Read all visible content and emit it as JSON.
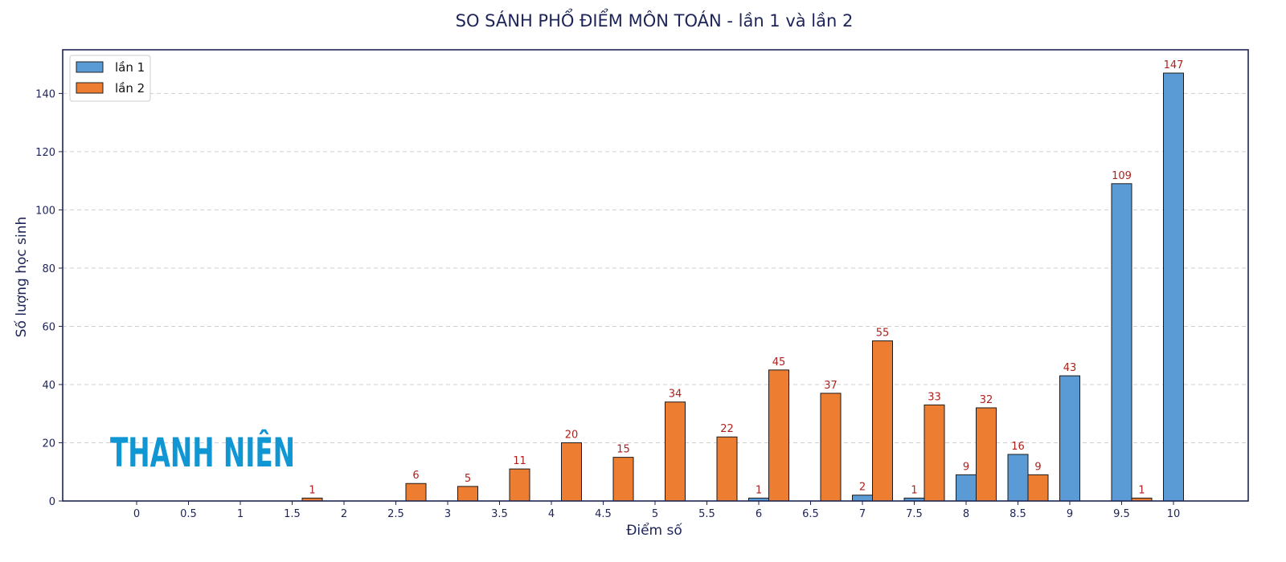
{
  "chart_data": {
    "type": "bar",
    "title": "SO SÁNH PHỔ ĐIỂM MÔN TOÁN - lần 1 và lần 2",
    "xlabel": "Điểm số",
    "ylabel": "Số lượng học sinh",
    "categories": [
      "0",
      "0.5",
      "1",
      "1.5",
      "2",
      "2.5",
      "3",
      "3.5",
      "4",
      "4.5",
      "5",
      "5.5",
      "6",
      "6.5",
      "7",
      "7.5",
      "8",
      "8.5",
      "9",
      "9.5",
      "10"
    ],
    "series": [
      {
        "name": "lần 1",
        "color": "#5b9bd5",
        "values": [
          0,
          0,
          0,
          0,
          0,
          0,
          0,
          0,
          0,
          0,
          0,
          0,
          1,
          0,
          2,
          1,
          9,
          16,
          43,
          109,
          147
        ]
      },
      {
        "name": "lần 2",
        "color": "#ed7d31",
        "values": [
          0,
          0,
          0,
          1,
          0,
          6,
          5,
          11,
          20,
          15,
          34,
          22,
          45,
          37,
          55,
          33,
          32,
          9,
          0,
          1,
          0
        ]
      }
    ],
    "yticks": [
      0,
      20,
      40,
      60,
      80,
      100,
      120,
      140
    ],
    "ylim": [
      0,
      155
    ],
    "grid": "horizontal dashed",
    "legend": "top-left",
    "label_color": "#b0201c",
    "frame_color": "#1d2457"
  },
  "watermark": {
    "text": "THANH NIÊN"
  }
}
